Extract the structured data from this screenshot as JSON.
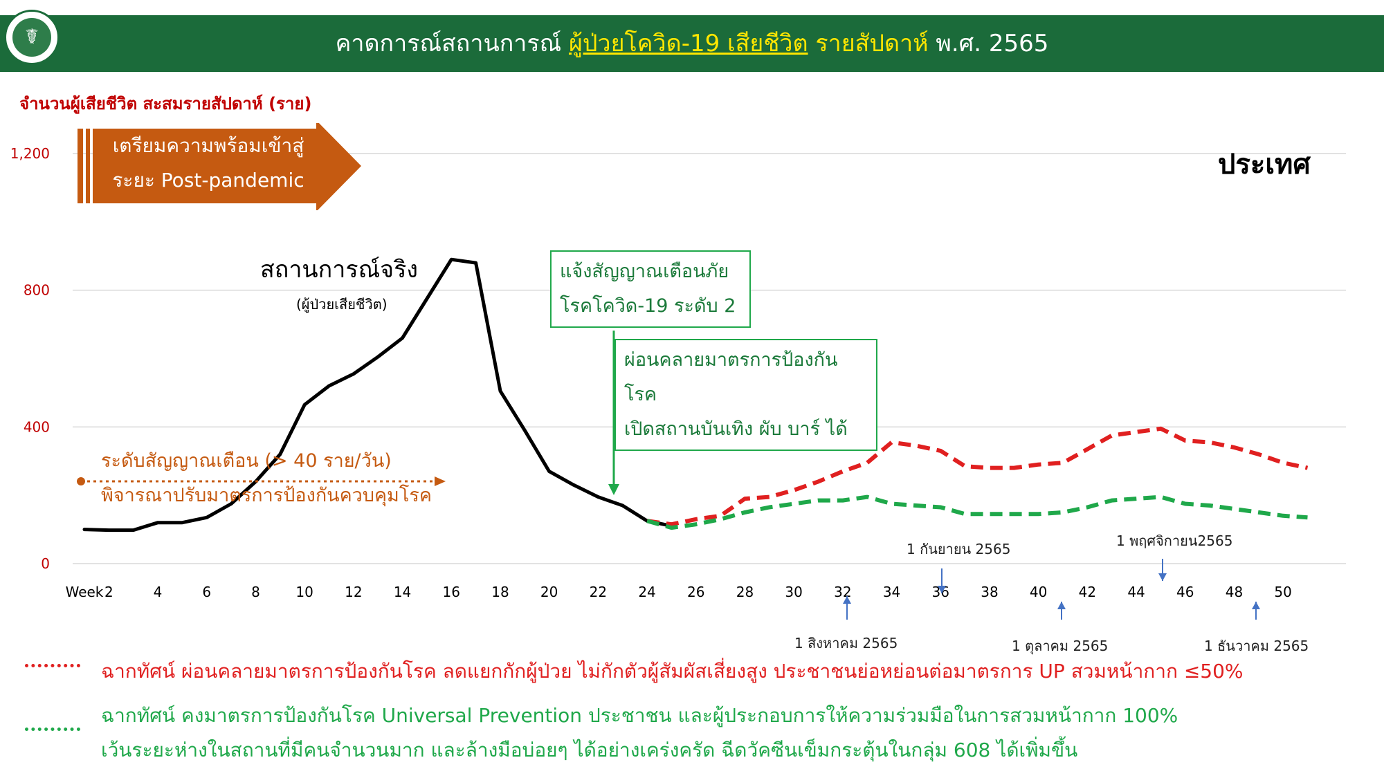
{
  "header": {
    "title_pre": "คาดการณ์สถานการณ์ ",
    "title_hl": "ผู้ป่วยโควิด-19 เสียชีวิต",
    "title_mid": " รายสัปดาห์",
    "title_post": " พ.ศ. 2565",
    "logo_icon": "ministry-of-public-health-seal"
  },
  "y_axis_title": "จำนวนผู้เสียชีวิต สะสมรายสัปดาห์ (ราย)",
  "banner": {
    "line1": "เตรียมความพร้อมเข้าสู่",
    "line2": "ระยะ Post-pandemic"
  },
  "country_label": "ประเทศ",
  "actual_label": {
    "main": "สถานการณ์จริง",
    "sub": "(ผู้ป่วยเสียชีวิต)"
  },
  "box_alert": {
    "line1": "แจ้งสัญญาณเตือนภัย",
    "line2": "โรคโควิด-19 ระดับ 2"
  },
  "box_relax": {
    "line1": "ผ่อนคลายมาตรการป้องกันโรค",
    "line2": "เปิดสถานบันเทิง ผับ บาร์ ได้"
  },
  "alert_level": {
    "line1": "ระดับสัญญาณเตือน    (> 40 ราย/วัน)",
    "line2": "พิจารณาปรับมาตรการป้องกันควบคุมโรค"
  },
  "date_markers": {
    "aug": "1 สิงหาคม 2565",
    "sep": "1 กันยายน 2565",
    "oct": "1 ตุลาคม 2565",
    "nov": "1 พฤศจิกายน2565",
    "dec": "1 ธันวาคม 2565"
  },
  "legend": {
    "red": "ฉากทัศน์ ผ่อนคลายมาตรการป้องกันโรค ลดแยกกักผู้ป่วย ไม่กักตัวผู้สัมผัสเสี่ยงสูง ประชาชนย่อหย่อนต่อมาตรการ UP สวมหน้ากาก ≤50%",
    "green_line1": "ฉากทัศน์ คงมาตรการป้องกันโรค Universal Prevention ประชาชน และผู้ประกอบการให้ความร่วมมือในการสวมหน้ากาก 100%",
    "green_line2": "เว้นระยะห่างในสถานที่มีคนจำนวนมาก และล้างมือบ่อยๆ ได้อย่างเคร่งครัด ฉีดวัคซีนเข็มกระตุ้นในกลุ่ม 608 ได้เพิ่มขึ้น"
  },
  "colors": {
    "header": "#1b6b3a",
    "banner": "#c55a11",
    "actual": "#000000",
    "relaxed": "#e02020",
    "maintain": "#1fa84a",
    "axis_text": "#c00000"
  },
  "chart_data": {
    "type": "line",
    "xlabel": "Week",
    "x_ticks": [
      2,
      4,
      6,
      8,
      10,
      12,
      14,
      16,
      18,
      20,
      22,
      24,
      26,
      28,
      30,
      32,
      34,
      36,
      38,
      40,
      42,
      44,
      46,
      48,
      50
    ],
    "y_ticks": [
      "0",
      "400",
      "800",
      "1,200"
    ],
    "ylim": [
      0,
      1200
    ],
    "xlim": [
      0,
      51.5
    ],
    "grid": true,
    "series": [
      {
        "key": "actual",
        "style": "solid",
        "x": [
          1,
          2,
          3,
          4,
          5,
          6,
          7,
          8,
          9,
          10,
          11,
          12,
          13,
          14,
          15,
          16,
          17,
          18,
          19,
          20,
          21,
          22,
          23,
          24,
          25
        ],
        "values": [
          100,
          98,
          98,
          120,
          120,
          135,
          175,
          240,
          320,
          465,
          520,
          555,
          605,
          660,
          775,
          890,
          880,
          505,
          390,
          270,
          230,
          195,
          170,
          125,
          110
        ]
      },
      {
        "key": "relaxed",
        "style": "dashed",
        "x": [
          24,
          25,
          26,
          27,
          28,
          29,
          30,
          31,
          32,
          33,
          34,
          35,
          36,
          37,
          38,
          39,
          40,
          41,
          42,
          43,
          44,
          45,
          46,
          47,
          48,
          49,
          50,
          51
        ],
        "values": [
          125,
          115,
          130,
          140,
          190,
          195,
          215,
          240,
          270,
          295,
          355,
          345,
          330,
          285,
          280,
          280,
          290,
          295,
          335,
          375,
          385,
          395,
          360,
          355,
          340,
          320,
          295,
          280
        ]
      },
      {
        "key": "maintain",
        "style": "dashed",
        "x": [
          24,
          25,
          26,
          27,
          28,
          29,
          30,
          31,
          32,
          33,
          34,
          35,
          36,
          37,
          38,
          39,
          40,
          41,
          42,
          43,
          44,
          45,
          46,
          47,
          48,
          49,
          50,
          51
        ],
        "values": [
          125,
          105,
          115,
          130,
          150,
          165,
          175,
          185,
          185,
          195,
          175,
          170,
          165,
          145,
          145,
          145,
          145,
          150,
          165,
          185,
          190,
          195,
          175,
          170,
          160,
          150,
          140,
          135
        ]
      }
    ]
  }
}
